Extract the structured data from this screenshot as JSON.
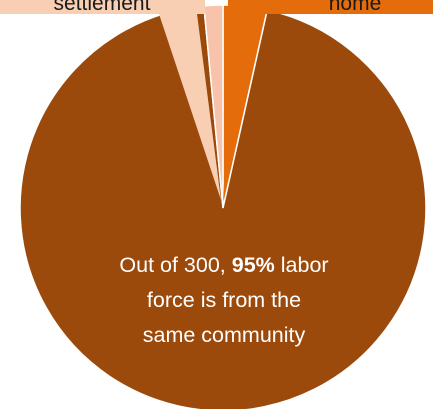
{
  "chart_data": {
    "type": "pie",
    "slices": [
      {
        "label": "settlement",
        "value": 1.5,
        "color": "#f7c3aa"
      },
      {
        "label": "home",
        "value": 3.5,
        "color": "#e46c0a"
      },
      {
        "label": "same community",
        "value": 95,
        "color": "#9c4a0c"
      }
    ],
    "annotation": {
      "line1_prefix": "Out of 300, ",
      "line1_bold": "95%",
      "line1_suffix": " labor",
      "line2": "force is from the",
      "line3": "same community"
    },
    "callouts": {
      "left_text": "settlement",
      "right_text": "home",
      "left_color": "#f9cfb4",
      "right_color": "#e46c0a"
    }
  }
}
